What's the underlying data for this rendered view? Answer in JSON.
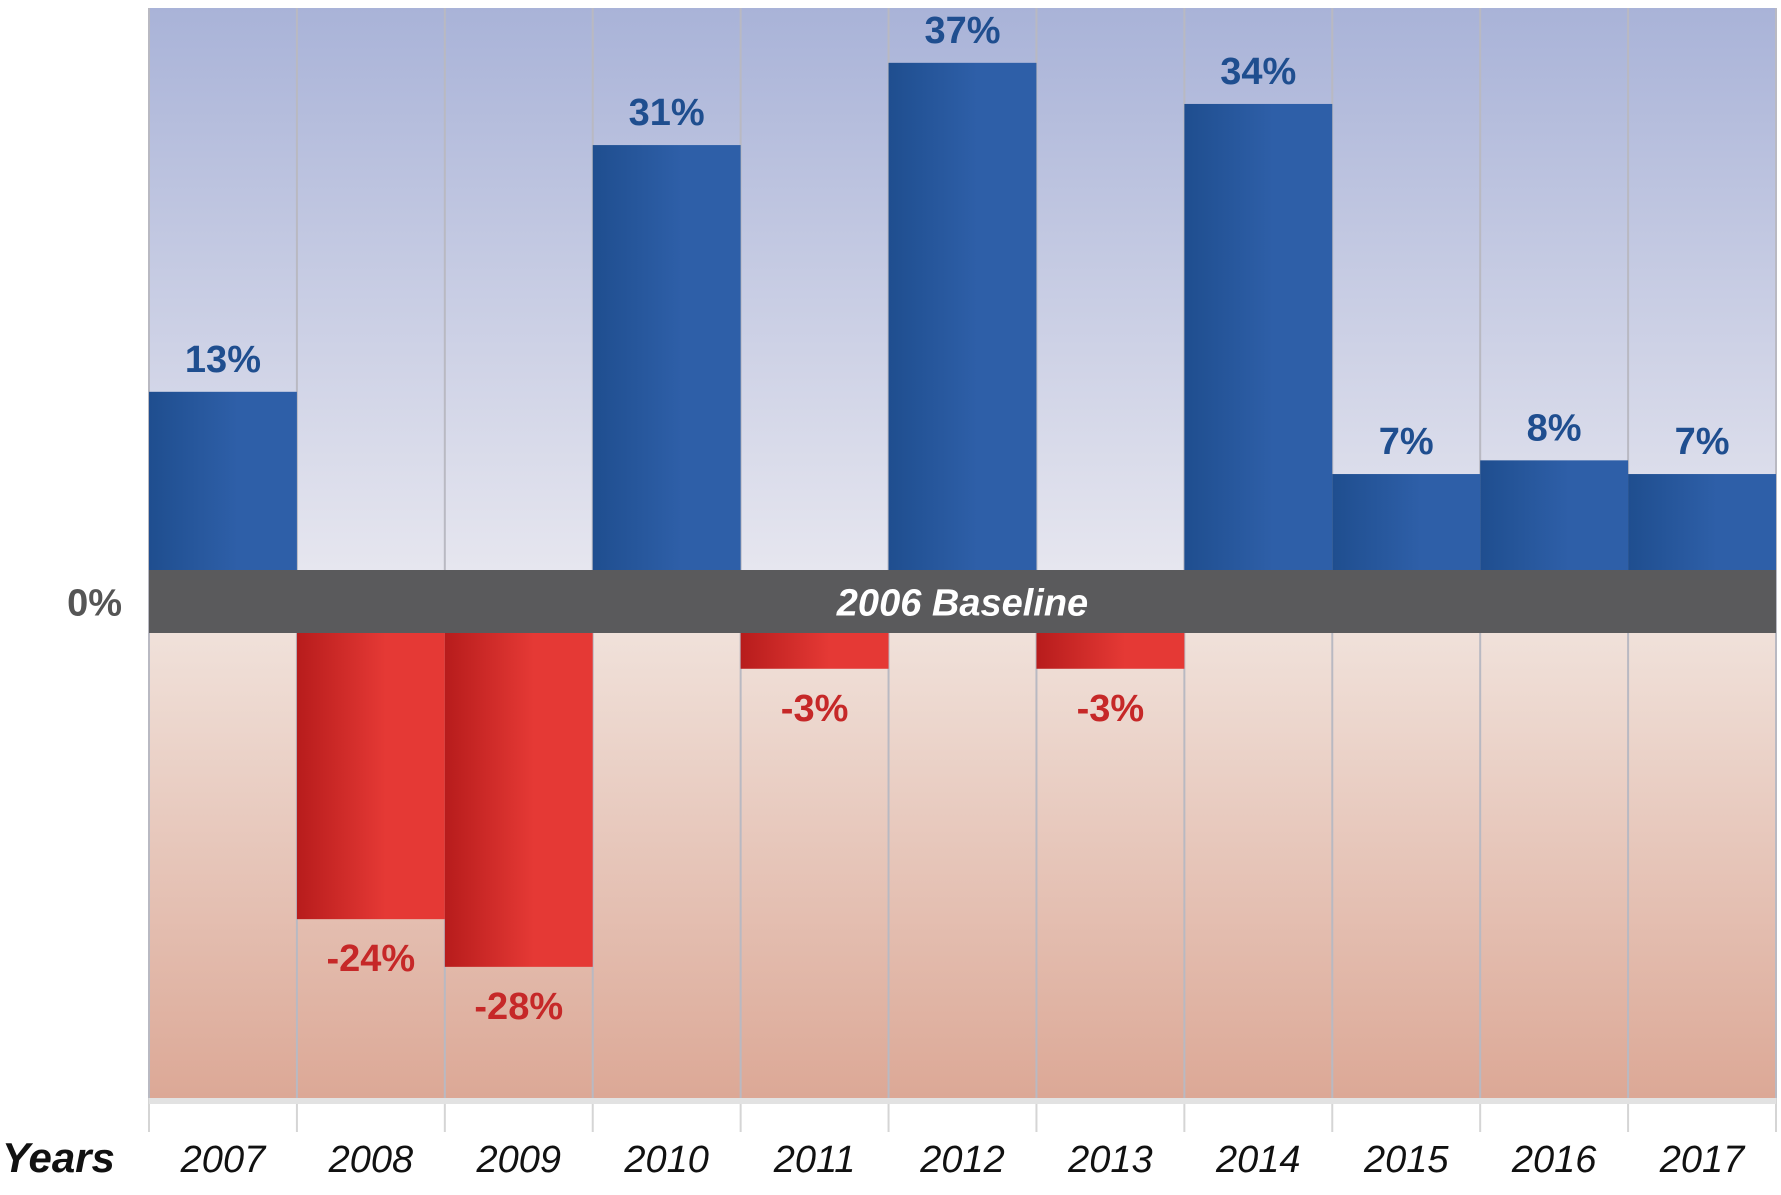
{
  "chart_data": {
    "type": "bar",
    "title": "",
    "xlabel": "Years",
    "ylabel": "",
    "categories": [
      "2007",
      "2008",
      "2009",
      "2010",
      "2011",
      "2012",
      "2013",
      "2014",
      "2015",
      "2016",
      "2017"
    ],
    "values": [
      13,
      -24,
      -28,
      31,
      -3,
      37,
      -3,
      34,
      7,
      8,
      7
    ],
    "value_labels": [
      "13%",
      "-24%",
      "-28%",
      "31%",
      "-3%",
      "37%",
      "-3%",
      "34%",
      "7%",
      "8%",
      "7%"
    ],
    "baseline_label": "2006 Baseline",
    "zero_label": "0%",
    "ylim": [
      -39,
      41
    ],
    "grid": true,
    "legend": "none",
    "colors": {
      "positive": "#2E5FA8",
      "positive_dark": "#1F4E8F",
      "negative": "#E53935",
      "negative_dark": "#B71C1C",
      "positive_label": "#1F4E8F",
      "negative_label": "#C62828",
      "baseline_band": "#5A5A5C",
      "upper_bg_top": "#A9B3D8",
      "upper_bg_bottom": "#E6E6EF",
      "lower_bg_top": "#F0E1DA",
      "lower_bg_bottom": "#DCA896",
      "gridline": "#B9B9C2",
      "axis_text": "#111111",
      "zero_text": "#555555"
    }
  }
}
